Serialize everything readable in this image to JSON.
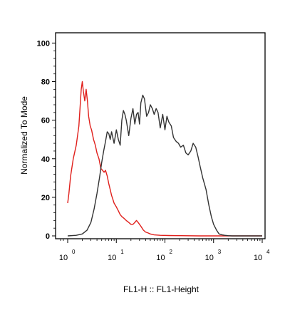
{
  "chart_data": {
    "type": "line",
    "xlabel": "FL1-H :: FL1-Height",
    "ylabel": "Normalized To Mode",
    "x_scale": "log",
    "xlim": [
      1,
      10000
    ],
    "ylim": [
      0,
      105
    ],
    "x_ticks": [
      {
        "base": "10",
        "exp": "0",
        "value": 1
      },
      {
        "base": "10",
        "exp": "1",
        "value": 10
      },
      {
        "base": "10",
        "exp": "2",
        "value": 100
      },
      {
        "base": "10",
        "exp": "3",
        "value": 1000
      },
      {
        "base": "10",
        "exp": "4",
        "value": 10000
      }
    ],
    "y_ticks": [
      "0",
      "20",
      "40",
      "60",
      "80",
      "100"
    ],
    "grid": false,
    "series": [
      {
        "color": "#e0201c",
        "x": [
          1.0,
          1.06,
          1.15,
          1.3,
          1.5,
          1.7,
          1.9,
          2.0,
          2.1,
          2.25,
          2.4,
          2.55,
          2.7,
          2.9,
          3.1,
          3.4,
          3.7,
          4.0,
          4.4,
          4.8,
          5.2,
          5.6,
          6.0,
          6.5,
          7.0,
          7.5,
          8.0,
          8.5,
          9.0,
          10.0,
          11.0,
          12.0,
          13.0,
          14.5,
          16.0,
          18.0,
          20.0,
          22.0,
          24.0,
          26.0,
          28.0,
          30.0,
          32.0,
          34.0,
          36.0,
          40.0,
          45.0,
          50.0,
          60.0,
          80.0,
          120.0,
          200.0,
          500.0,
          1000.0,
          3000.0,
          10000.0
        ],
        "y": [
          17,
          22,
          31,
          40,
          47,
          57,
          76,
          80,
          75,
          70,
          76,
          70,
          62,
          57,
          55,
          50,
          47,
          43,
          40,
          35,
          34,
          33,
          34,
          31,
          27,
          24,
          21,
          19,
          17,
          15,
          13,
          11,
          10,
          9,
          8,
          7,
          6,
          6,
          7,
          8,
          7,
          6,
          5,
          4,
          3,
          2,
          1.5,
          1,
          0.5,
          0.3,
          0.2,
          0.1,
          0,
          0,
          0,
          0
        ]
      },
      {
        "color": "#333333",
        "x": [
          1.0,
          1.5,
          2.0,
          2.5,
          3.0,
          3.5,
          4.0,
          4.5,
          5.0,
          5.5,
          6.0,
          6.5,
          7.0,
          7.5,
          8.0,
          9.0,
          10.0,
          11.0,
          12.0,
          13.0,
          14.0,
          15.0,
          16.0,
          18.0,
          20.0,
          22.0,
          24.0,
          26.0,
          28.0,
          30.0,
          32.0,
          35.0,
          38.0,
          42.0,
          46.0,
          50.0,
          55.0,
          60.0,
          66.0,
          72.0,
          80.0,
          90.0,
          100.0,
          110.0,
          120.0,
          135.0,
          150.0,
          170.0,
          190.0,
          210.0,
          240.0,
          270.0,
          300.0,
          340.0,
          380.0,
          430.0,
          480.0,
          530.0,
          600.0,
          700.0,
          800.0,
          900.0,
          1000.0,
          1150.0,
          1300.0,
          1500.0,
          1700.0,
          2000.0,
          2400.0,
          3000.0,
          5000.0,
          10000.0
        ],
        "y": [
          0,
          0.3,
          1,
          3,
          7,
          14,
          22,
          30,
          38,
          44,
          49,
          54,
          53,
          50,
          54,
          48,
          55,
          50,
          47,
          60,
          65,
          63,
          60,
          52,
          61,
          66,
          58,
          63,
          64,
          58,
          69,
          73,
          71,
          62,
          64,
          68,
          66,
          63,
          66,
          64,
          56,
          63,
          55,
          62,
          59,
          57,
          51,
          49,
          48,
          46,
          47,
          43,
          42,
          44,
          48,
          46,
          41,
          36,
          30,
          24,
          16,
          10,
          6,
          3,
          1,
          0.5,
          0.3,
          0.1,
          0,
          0,
          0,
          0
        ]
      }
    ]
  }
}
